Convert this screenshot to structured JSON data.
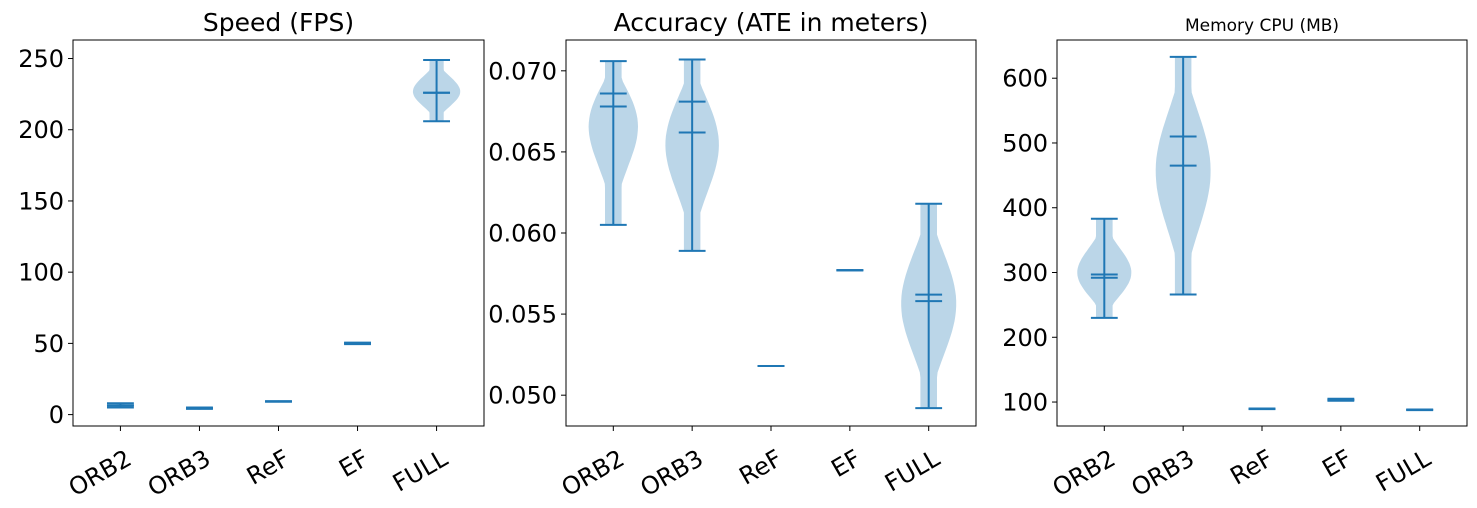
{
  "chart_data": [
    {
      "type": "violin",
      "title": "Speed (FPS)",
      "categories": [
        "ORB2",
        "ORB3",
        "ReF",
        "EF",
        "FULL"
      ],
      "ylim": [
        -8,
        263
      ],
      "yticks": [
        0,
        50,
        100,
        150,
        200,
        250
      ],
      "series": [
        {
          "min": 5,
          "max": 8,
          "mean": 6.5,
          "median": 6.5,
          "body_width": 0.2
        },
        {
          "min": 4,
          "max": 5,
          "mean": 4.5,
          "median": 4.5,
          "body_width": 0.12
        },
        {
          "min": 9,
          "max": 9.5,
          "mean": 9.2,
          "median": 9.2,
          "body_width": 0.04
        },
        {
          "min": 49.5,
          "max": 50.5,
          "mean": 50,
          "median": 50,
          "body_width": 0.2
        },
        {
          "min": 206,
          "max": 249,
          "mean": 226,
          "median": 226,
          "body_width": 0.6
        }
      ]
    },
    {
      "type": "violin",
      "title": "Accuracy (ATE in meters)",
      "categories": [
        "ORB2",
        "ORB3",
        "ReF",
        "EF",
        "FULL"
      ],
      "ylim": [
        0.0481,
        0.0719
      ],
      "yticks": [
        0.05,
        0.055,
        0.06,
        0.065,
        0.07
      ],
      "ytick_labels": [
        "0.050",
        "0.055",
        "0.060",
        "0.065",
        "0.070"
      ],
      "series": [
        {
          "min": 0.0605,
          "max": 0.0706,
          "mean": 0.0686,
          "median": 0.0678,
          "body_width": 0.7
        },
        {
          "min": 0.0589,
          "max": 0.0707,
          "mean": 0.0681,
          "median": 0.0662,
          "body_width": 0.7
        },
        {
          "min": 0.0518,
          "max": 0.0518,
          "mean": 0.0518,
          "median": 0.0518,
          "body_width": 0
        },
        {
          "min": 0.0577,
          "max": 0.0577,
          "mean": 0.0577,
          "median": 0.0577,
          "body_width": 0
        },
        {
          "min": 0.0492,
          "max": 0.0618,
          "mean": 0.0562,
          "median": 0.0558,
          "body_width": 0.7
        }
      ]
    },
    {
      "type": "violin",
      "title": "Memory CPU (MB)",
      "categories": [
        "ORB2",
        "ORB3",
        "ReF",
        "EF",
        "FULL"
      ],
      "ylim": [
        63,
        659
      ],
      "yticks": [
        100,
        200,
        300,
        400,
        500,
        600
      ],
      "series": [
        {
          "min": 230,
          "max": 383,
          "mean": 297,
          "median": 292,
          "body_width": 0.7
        },
        {
          "min": 266,
          "max": 633,
          "mean": 510,
          "median": 465,
          "body_width": 0.7
        },
        {
          "min": 89,
          "max": 90,
          "mean": 89.5,
          "median": 89.5,
          "body_width": 0.12
        },
        {
          "min": 102,
          "max": 105,
          "mean": 103.5,
          "median": 103.5,
          "body_width": 0.2
        },
        {
          "min": 87.5,
          "max": 88.5,
          "mean": 88,
          "median": 88,
          "body_width": 0.1
        }
      ]
    }
  ],
  "colors": {
    "line": "#1f77b4",
    "fill": "#1f77b4",
    "fill_opacity": 0.3
  }
}
